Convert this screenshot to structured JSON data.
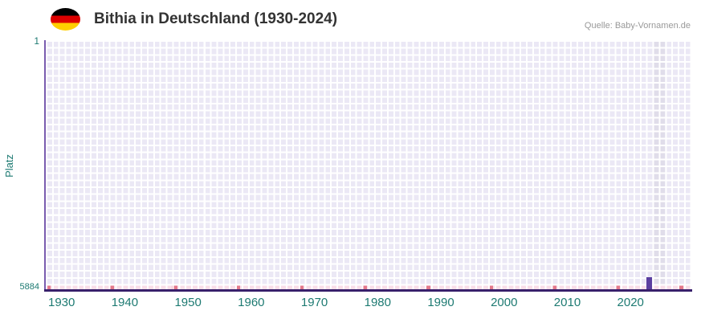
{
  "header": {
    "title": "Bithia in Deutschland (1930-2024)",
    "source": "Quelle: Baby-Vornamen.de",
    "flag_icon": "germany-flag-icon"
  },
  "chart_data": {
    "type": "bar",
    "title": "Bithia in Deutschland (1930-2024)",
    "source": "Baby-Vornamen.de",
    "xlabel": "",
    "ylabel": "Platz",
    "y_ticks": [
      "1",
      "5884"
    ],
    "y_range": [
      1,
      5884
    ],
    "y_axis_inverted": true,
    "x_range": [
      1928,
      2029
    ],
    "x_ticks": [
      1930,
      1940,
      1950,
      1960,
      1970,
      1980,
      1990,
      2000,
      2010,
      2020
    ],
    "series": [
      {
        "name": "Bithia",
        "points": [
          {
            "year": 2023,
            "rank": 5560
          }
        ]
      }
    ],
    "highlight_band": {
      "from_year": 2024,
      "to_year": 2025
    },
    "decade_marker_years": [
      1928,
      1938,
      1948,
      1958,
      1968,
      1978,
      1988,
      1998,
      2008,
      2018,
      2028
    ],
    "grid": true,
    "legend": false,
    "colors": {
      "bar": "#5b3fa0",
      "axis": "#38206b",
      "axis_secondary": "#7a5caf",
      "tick_label": "#1d7a72",
      "grid_cell": "#ebe8f5",
      "grid_line": "#ffffff",
      "decade_marker": "#e4798c",
      "bottom_row": "#f9dee8",
      "highlight": "#e0ddea",
      "flag_black": "#000000",
      "flag_red": "#dd0000",
      "flag_gold": "#ffce00",
      "title_text": "#333333",
      "source_text": "#999999"
    }
  }
}
